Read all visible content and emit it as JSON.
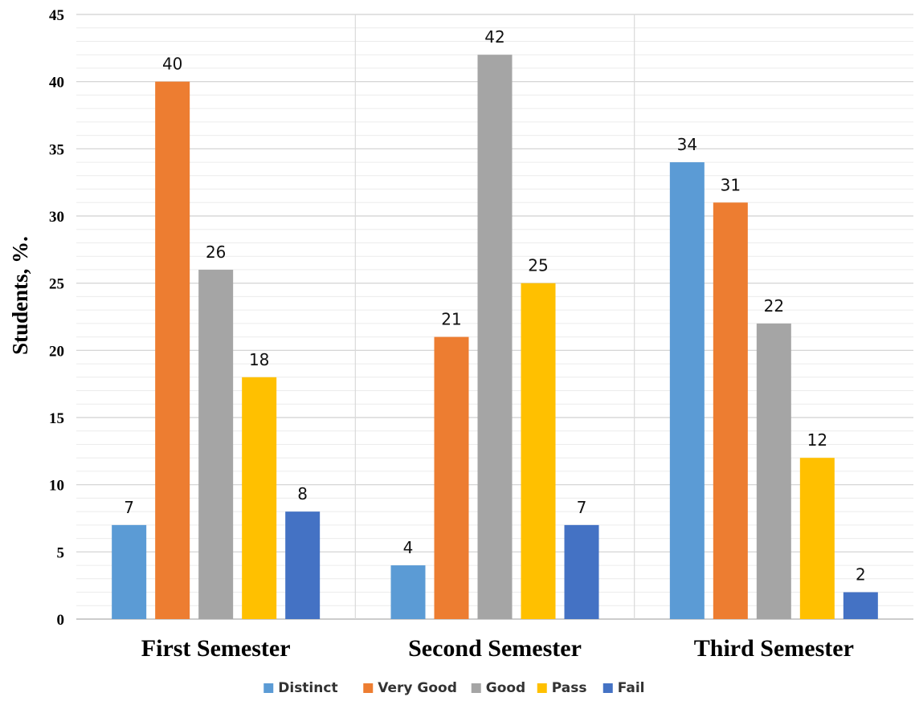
{
  "chart_data": {
    "type": "bar",
    "categories": [
      "First Semester",
      "Second Semester",
      "Third Semester"
    ],
    "series": [
      {
        "name": "Distinct",
        "color": "#5B9BD5",
        "values": [
          7,
          4,
          34
        ]
      },
      {
        "name": "Very Good",
        "color": "#ED7D31",
        "values": [
          40,
          21,
          31
        ]
      },
      {
        "name": "Good",
        "color": "#A5A5A5",
        "values": [
          26,
          42,
          22
        ]
      },
      {
        "name": "Pass",
        "color": "#FFC000",
        "values": [
          18,
          25,
          12
        ]
      },
      {
        "name": "Fail",
        "color": "#4472C4",
        "values": [
          8,
          7,
          2
        ]
      }
    ],
    "ylabel": "Students, %.",
    "xlabel": "",
    "ylim": [
      0,
      45
    ],
    "yticks": [
      0,
      5,
      10,
      15,
      20,
      25,
      30,
      35,
      40,
      45
    ],
    "data_labels": true,
    "grid": true,
    "legend_position": "bottom"
  }
}
